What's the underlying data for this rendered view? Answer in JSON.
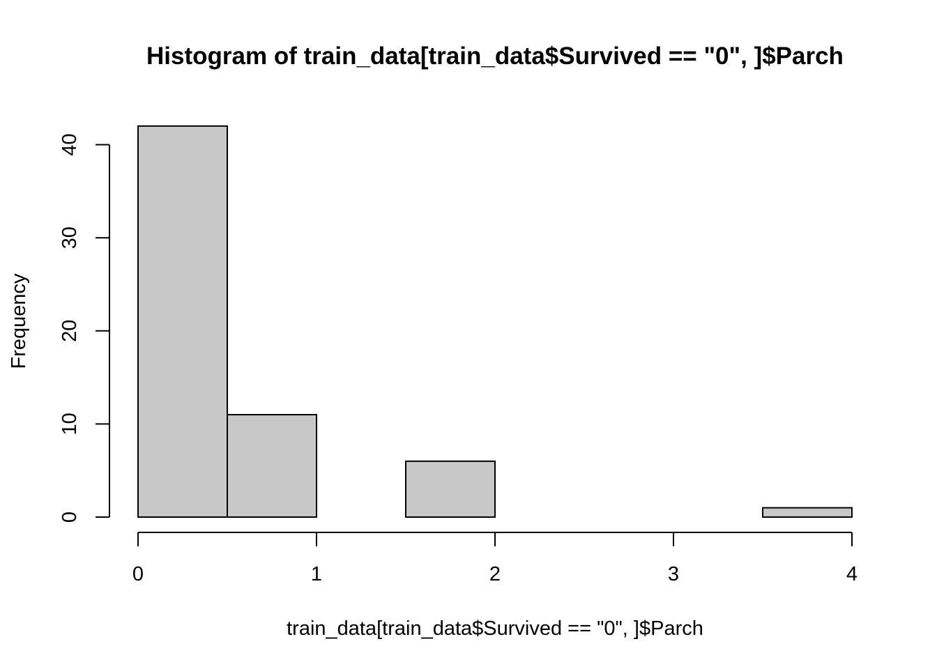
{
  "chart_data": {
    "type": "bar",
    "subtype": "histogram",
    "title": "Histogram of train_data[train_data$Survived == \"0\", ]$Parch",
    "xlabel": "train_data[train_data$Survived == \"0\", ]$Parch",
    "ylabel": "Frequency",
    "bins": [
      {
        "start": 0.0,
        "end": 0.5,
        "count": 42
      },
      {
        "start": 0.5,
        "end": 1.0,
        "count": 11
      },
      {
        "start": 1.0,
        "end": 1.5,
        "count": 0
      },
      {
        "start": 1.5,
        "end": 2.0,
        "count": 6
      },
      {
        "start": 2.0,
        "end": 2.5,
        "count": 0
      },
      {
        "start": 2.5,
        "end": 3.0,
        "count": 0
      },
      {
        "start": 3.0,
        "end": 3.5,
        "count": 0
      },
      {
        "start": 3.5,
        "end": 4.0,
        "count": 1
      }
    ],
    "xlim": [
      0,
      4
    ],
    "ylim": [
      0,
      42
    ],
    "xticks": [
      "0",
      "1",
      "2",
      "3",
      "4"
    ],
    "yticks": [
      "0",
      "10",
      "20",
      "30",
      "40"
    ],
    "grid": false,
    "legend": "none",
    "colors": {
      "bar_fill": "#c8c8c8",
      "bar_stroke": "#000000",
      "axis": "#000000",
      "background": "#ffffff"
    }
  }
}
